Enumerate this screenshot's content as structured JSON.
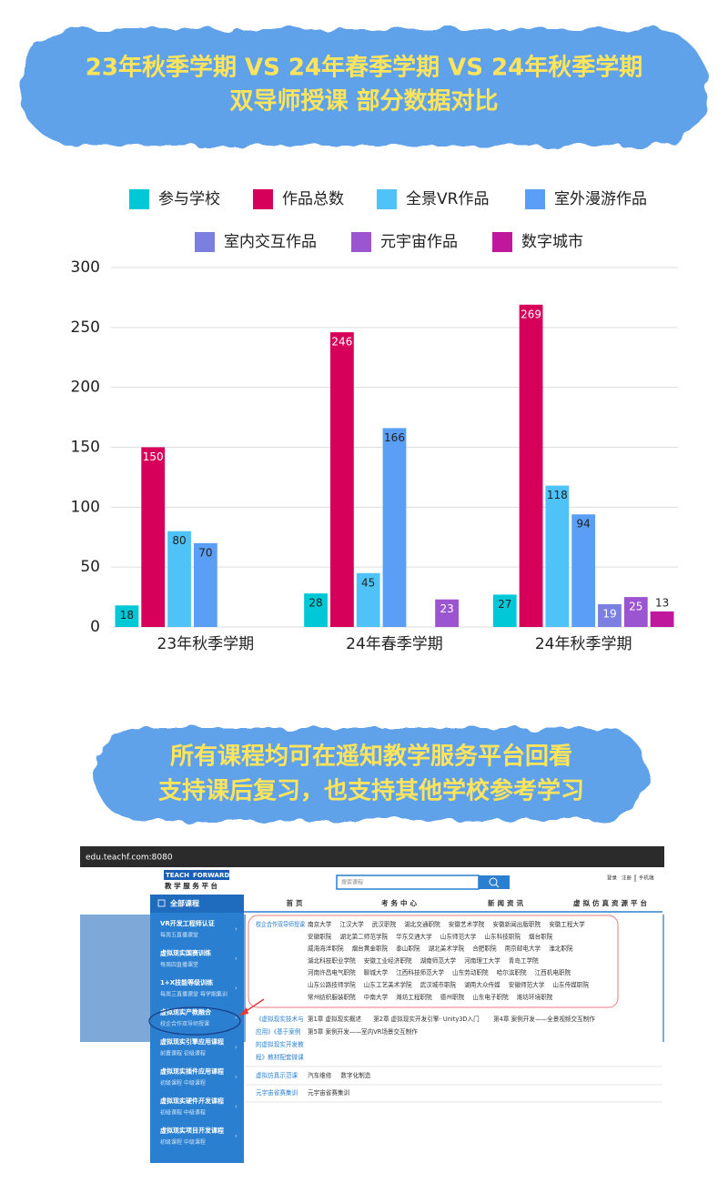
{
  "header": {
    "title_lines": [
      "23年秋季学期 VS 24年春季学期 VS 24年秋季学期",
      "双导师授课 部分数据对比"
    ]
  },
  "chart_data": {
    "type": "bar",
    "categories": [
      "23年秋季学期",
      "24年春季学期",
      "24年秋季学期"
    ],
    "series": [
      {
        "name": "参与学校",
        "color": "#00c8d7",
        "values": [
          18,
          28,
          27
        ]
      },
      {
        "name": "作品总数",
        "color": "#d6005a",
        "values": [
          150,
          246,
          269
        ]
      },
      {
        "name": "全景VR作品",
        "color": "#4fc3f7",
        "values": [
          80,
          45,
          118
        ]
      },
      {
        "name": "室外漫游作品",
        "color": "#5b9ef5",
        "values": [
          70,
          166,
          94
        ]
      },
      {
        "name": "室内交互作品",
        "color": "#7b7fe0",
        "values": [
          null,
          null,
          19
        ]
      },
      {
        "name": "元宇宙作品",
        "color": "#9c55d0",
        "values": [
          null,
          23,
          25
        ]
      },
      {
        "name": "数字城市",
        "color": "#c0189c",
        "values": [
          null,
          null,
          13
        ]
      }
    ],
    "ylim": [
      0,
      300
    ],
    "yticks": [
      0,
      50,
      100,
      150,
      200,
      250,
      300
    ],
    "grid": true
  },
  "banner": {
    "lines": [
      "所有课程均可在遥知教学服务平台回看",
      "支持课后复习，也支持其他学校参考学习"
    ]
  },
  "screenshot": {
    "url": "edu.teachf.com:8080",
    "logo": [
      "TEACH",
      "FORWARD"
    ],
    "platform": "教 学 服 务 平 台",
    "search_placeholder": "搜索课程",
    "top_links": [
      "登录",
      "注册",
      "手机端"
    ],
    "nav": [
      "首页",
      "考务中心",
      "新闻资讯",
      "虚拟仿真资源平台"
    ],
    "sidebar_title": "全部课程",
    "sidebar": [
      {
        "title": "VR开发工程师认证",
        "sub": "每周五直播课堂"
      },
      {
        "title": "虚拟现实国赛训练",
        "sub": "每周四直播课堂"
      },
      {
        "title": "1+X技能等级训练",
        "sub": "每周三直播课堂  每学期集训"
      },
      {
        "title": "虚拟现实产教融合",
        "sub": "校企合作双导师授课"
      },
      {
        "title": "虚拟现实引擎应用课程",
        "sub": "前置课程  初级课程"
      },
      {
        "title": "虚拟现实插件应用课程",
        "sub": "初级课程  中级课程"
      },
      {
        "title": "虚拟现实硬件开发课程",
        "sub": "初级课程  中级课程"
      },
      {
        "title": "虚拟现实项目开发课程",
        "sub": "初级课程  中级课程"
      }
    ],
    "partners": {
      "label": "校企合作双导师授课",
      "rows": [
        [
          "南京大学",
          "江汉大学",
          "武汉职院",
          "湖北交通职院",
          "安徽艺术学院",
          "安徽新闻出版职院",
          "安徽工程大学"
        ],
        [
          "安徽职院",
          "湖北第二师范学院",
          "华东交通大学",
          "山东师范大学",
          "山东科技职院",
          "烟台职院"
        ],
        [
          "威海海洋职院",
          "烟台黄金职院",
          "泰山职院",
          "湖北美术学院",
          "合肥职院",
          "南京邮电大学",
          "淮北职院"
        ],
        [
          "湖北科技职业学院",
          "安徽工业经济职院",
          "湖南师范大学",
          "河南理工大学",
          "青岛工学院"
        ],
        [
          "河南许昌电气职院",
          "聊城大学",
          "江西科技师范大学",
          "山东劳动职院",
          "哈尔滨职院",
          "江西机电职院"
        ],
        [
          "山东公路技师学院",
          "山东工艺美术学院",
          "武汉城市职院",
          "湖南大众传媒",
          "安徽师范大学",
          "山东传媒职院"
        ],
        [
          "常州纺织服装职院",
          "中南大学",
          "潍坊工程职院",
          "德州职院",
          "山东电子职院",
          "潍坊环境职院"
        ]
      ]
    },
    "courses": {
      "label_lines": [
        "《虚拟现实技术与",
        "应用》《基于案例",
        "的虚拟现实开发教",
        "程》教材配套微课"
      ],
      "lines": [
        [
          "第1章 虚拟现实概述",
          "第2章 虚拟现实开发引擎- Unity3D入门",
          "第4章 案例开发——全景视频交互制作"
        ],
        [
          "第5章 案例开发——室内VR场景交互制作"
        ]
      ]
    },
    "rows": [
      {
        "label": "虚拟仿真示范课",
        "items": [
          "汽车维修",
          "数字化制造"
        ]
      },
      {
        "label": "元宇宙省赛集训",
        "items": [
          "元宇宙省赛集训"
        ]
      }
    ]
  }
}
